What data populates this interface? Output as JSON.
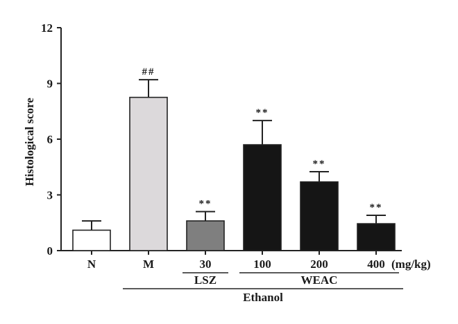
{
  "chart_data": {
    "type": "bar",
    "title": "",
    "ylabel": "Histological score",
    "xlabel": "",
    "ylim": [
      0,
      12
    ],
    "yticks": [
      "0",
      "3",
      "6",
      "9",
      "12"
    ],
    "categories": [
      "N",
      "M",
      "30",
      "100",
      "200",
      "400"
    ],
    "values": [
      1.1,
      8.25,
      1.6,
      5.7,
      3.7,
      1.45
    ],
    "errors": [
      0.5,
      0.95,
      0.5,
      1.3,
      0.55,
      0.45
    ],
    "annotations": [
      "",
      "##",
      "**",
      "**",
      "**",
      "**"
    ],
    "bar_colors": [
      "#ffffff",
      "#dcd9db",
      "#7f7f7f",
      "#151515",
      "#151515",
      "#151515"
    ],
    "unit_label": "(mg/kg)",
    "groups": [
      {
        "label": "LSZ",
        "from": 2,
        "to": 2
      },
      {
        "label": "WEAC",
        "from": 3,
        "to": 5
      }
    ],
    "outer_group": {
      "label": "Ethanol",
      "from": 1,
      "to": 5
    },
    "grid": false,
    "legend": "none"
  }
}
